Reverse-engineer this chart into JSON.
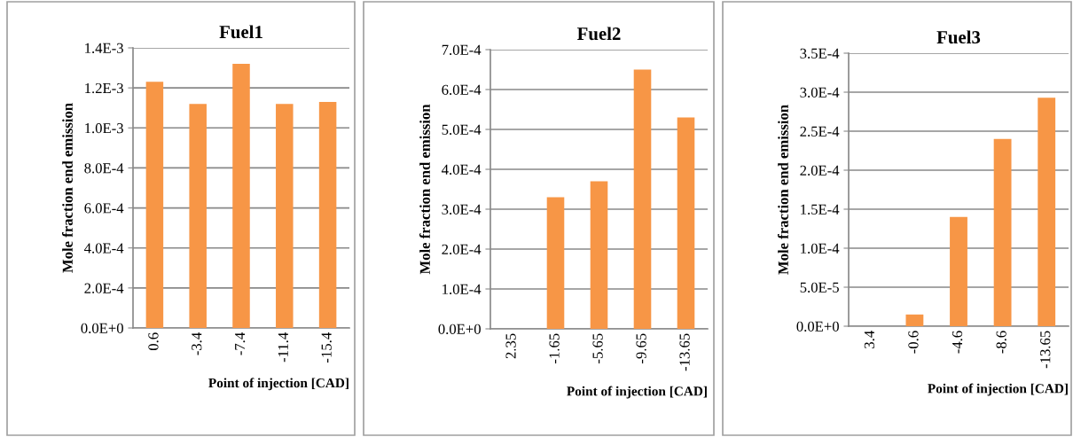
{
  "chart_data": [
    {
      "type": "bar",
      "title": "Fuel1",
      "xlabel": "Point of injection [CAD]",
      "ylabel": "Mole fraction end emission",
      "categories": [
        "0.6",
        "-3.4",
        "-7.4",
        "-11.4",
        "-15.4"
      ],
      "values": [
        0.00123,
        0.00112,
        0.00132,
        0.00112,
        0.00113
      ],
      "color": "#f79646",
      "ylim": [
        0,
        0.0014
      ],
      "yticks": [
        {
          "value": 0,
          "label": "0.0E+0"
        },
        {
          "value": 0.0002,
          "label": "2.0E-4"
        },
        {
          "value": 0.0004,
          "label": "4.0E-4"
        },
        {
          "value": 0.0006,
          "label": "6.0E-4"
        },
        {
          "value": 0.0008,
          "label": "8.0E-4"
        },
        {
          "value": 0.001,
          "label": "1.0E-3"
        },
        {
          "value": 0.0012,
          "label": "1.2E-3"
        },
        {
          "value": 0.0014,
          "label": "1.4E-3"
        }
      ],
      "grid": "y"
    },
    {
      "type": "bar",
      "title": "Fuel2",
      "xlabel": "Point of injection [CAD]",
      "ylabel": "Mole fraction end emission",
      "categories": [
        "2.35",
        "-1.65",
        "-5.65",
        "-9.65",
        "-13.65"
      ],
      "values": [
        0,
        0.00033,
        0.00037,
        0.00065,
        0.00053
      ],
      "color": "#f79646",
      "ylim": [
        0,
        0.0007
      ],
      "yticks": [
        {
          "value": 0,
          "label": "0.0E+0"
        },
        {
          "value": 0.0001,
          "label": "1.0E-4"
        },
        {
          "value": 0.0002,
          "label": "2.0E-4"
        },
        {
          "value": 0.0003,
          "label": "3.0E-4"
        },
        {
          "value": 0.0004,
          "label": "4.0E-4"
        },
        {
          "value": 0.0005,
          "label": "5.0E-4"
        },
        {
          "value": 0.0006,
          "label": "6.0E-4"
        },
        {
          "value": 0.0007,
          "label": "7.0E-4"
        }
      ],
      "grid": "y"
    },
    {
      "type": "bar",
      "title": "Fuel3",
      "xlabel": "Point of injection [CAD]",
      "ylabel": "Mole fraction end emission",
      "categories": [
        "3.4",
        "-0.6",
        "-4.6",
        "-8.6",
        "-13.65"
      ],
      "values": [
        0,
        1.5e-05,
        0.00014,
        0.00024,
        0.000293
      ],
      "color": "#f79646",
      "ylim": [
        0,
        0.00035
      ],
      "yticks": [
        {
          "value": 0,
          "label": "0.0E+0"
        },
        {
          "value": 5e-05,
          "label": "5.0E-5"
        },
        {
          "value": 0.0001,
          "label": "1.0E-4"
        },
        {
          "value": 0.00015,
          "label": "1.5E-4"
        },
        {
          "value": 0.0002,
          "label": "2.0E-4"
        },
        {
          "value": 0.00025,
          "label": "2.5E-4"
        },
        {
          "value": 0.0003,
          "label": "3.0E-4"
        },
        {
          "value": 0.00035,
          "label": "3.5E-4"
        }
      ],
      "grid": "y"
    }
  ]
}
